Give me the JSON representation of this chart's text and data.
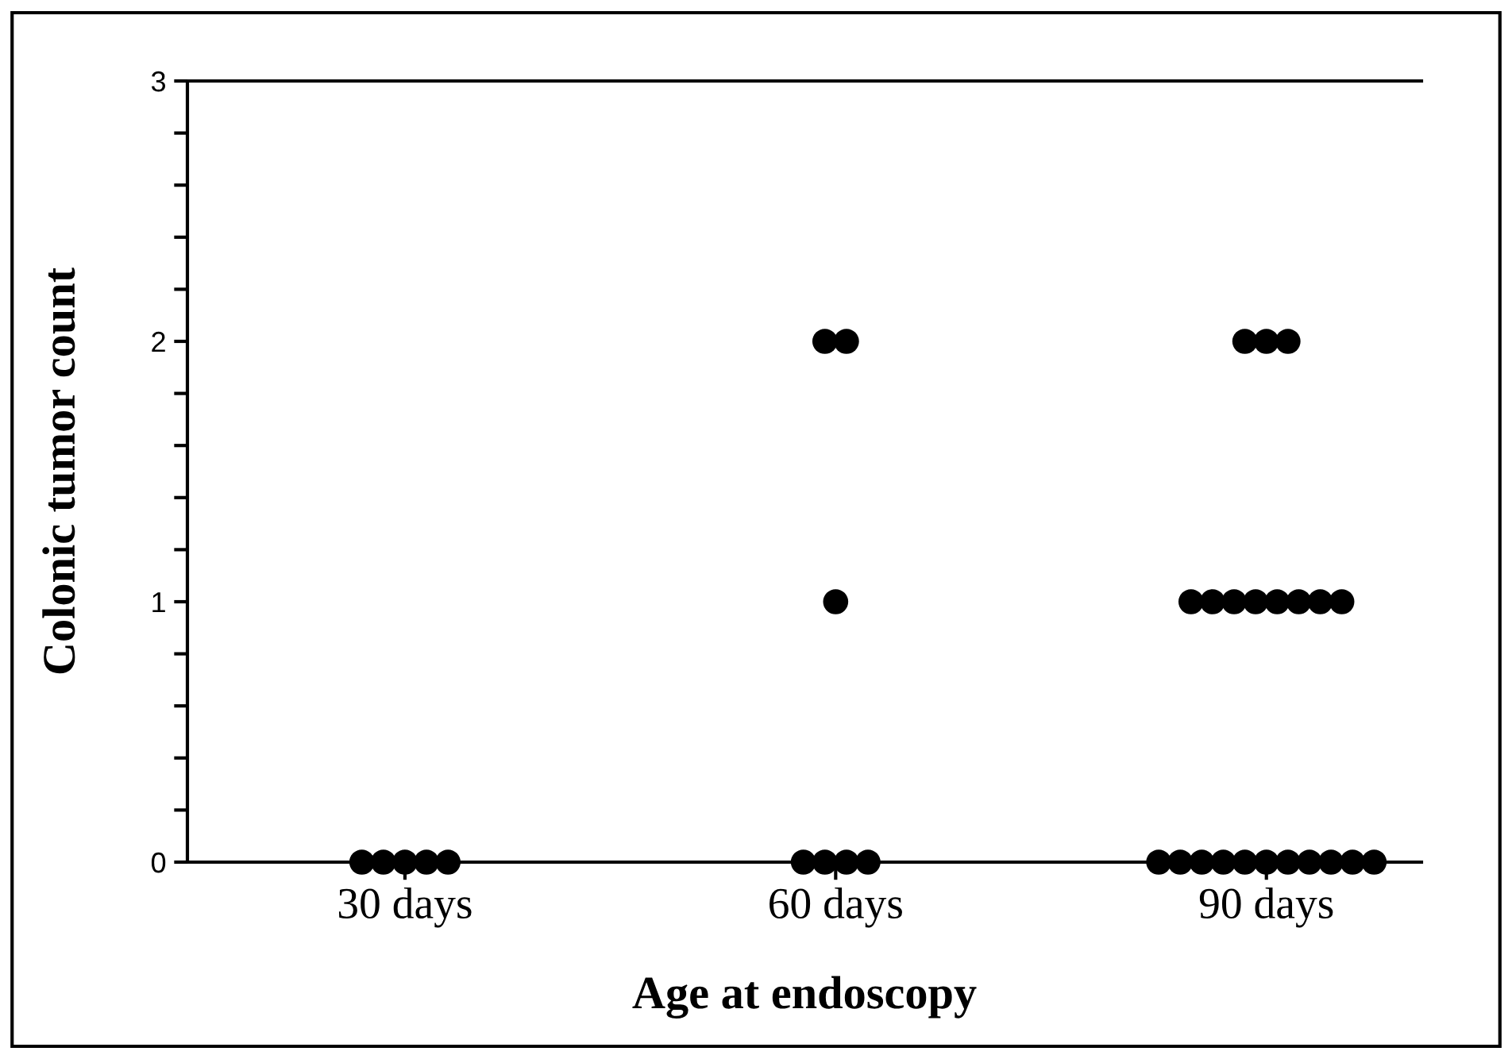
{
  "chart_data": {
    "type": "scatter",
    "xlabel": "Age at endoscopy",
    "ylabel": "Colonic tumor count",
    "categories": [
      "30 days",
      "60 days",
      "90 days"
    ],
    "series": [
      {
        "color": "#000000",
        "x": [
          "30 days",
          "30 days",
          "30 days",
          "30 days",
          "30 days",
          "60 days",
          "60 days",
          "60 days",
          "60 days",
          "60 days",
          "60 days",
          "60 days",
          "90 days",
          "90 days",
          "90 days",
          "90 days",
          "90 days",
          "90 days",
          "90 days",
          "90 days",
          "90 days",
          "90 days",
          "90 days",
          "90 days",
          "90 days",
          "90 days",
          "90 days",
          "90 days",
          "90 days",
          "90 days",
          "90 days",
          "90 days",
          "90 days",
          "90 days"
        ],
        "values": [
          0,
          0,
          0,
          0,
          0,
          0,
          0,
          0,
          0,
          1,
          2,
          2,
          0,
          0,
          0,
          0,
          0,
          0,
          0,
          0,
          0,
          0,
          0,
          1,
          1,
          1,
          1,
          1,
          1,
          1,
          1,
          2,
          2,
          2
        ]
      }
    ],
    "ylim": [
      0,
      3
    ],
    "yticks": [
      0,
      1,
      2,
      3
    ],
    "grid": false,
    "legend": false,
    "marker": "circle"
  }
}
